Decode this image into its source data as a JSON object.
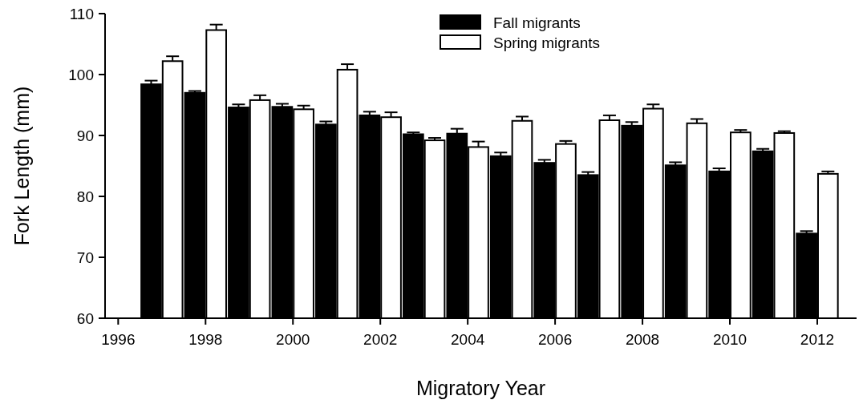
{
  "chart_data": {
    "type": "bar",
    "xlabel": "Migratory Year",
    "ylabel": "Fork Length (mm)",
    "x": [
      1997,
      1998,
      1999,
      2000,
      2001,
      2002,
      2003,
      2004,
      2005,
      2006,
      2007,
      2008,
      2009,
      2010,
      2011,
      2012
    ],
    "series": [
      {
        "name": "Fall migrants",
        "color": "#000000",
        "values": [
          98.4,
          97.0,
          94.6,
          94.7,
          91.8,
          93.3,
          90.2,
          90.3,
          86.6,
          85.5,
          83.5,
          91.6,
          85.1,
          84.1,
          87.4,
          73.9
        ],
        "errors": [
          0.6,
          0.3,
          0.5,
          0.5,
          0.5,
          0.6,
          0.3,
          0.8,
          0.6,
          0.5,
          0.5,
          0.6,
          0.5,
          0.5,
          0.4,
          0.4
        ]
      },
      {
        "name": "Spring migrants",
        "color": "#ffffff",
        "values": [
          102.2,
          107.3,
          95.8,
          94.3,
          100.8,
          93.0,
          89.2,
          88.1,
          92.4,
          88.6,
          92.5,
          94.4,
          92.0,
          90.5,
          90.4,
          83.7
        ],
        "errors": [
          0.8,
          0.9,
          0.8,
          0.6,
          0.9,
          0.8,
          0.4,
          0.9,
          0.7,
          0.5,
          0.8,
          0.7,
          0.7,
          0.4,
          0.3,
          0.4
        ]
      }
    ],
    "xlim": [
      1995.7,
      2012.9
    ],
    "xticks": [
      1996,
      1998,
      2000,
      2002,
      2004,
      2006,
      2008,
      2010,
      2012
    ],
    "ylim": [
      60,
      110
    ],
    "yticks": [
      60,
      70,
      80,
      90,
      100,
      110
    ],
    "grid": false,
    "legend": "top"
  }
}
